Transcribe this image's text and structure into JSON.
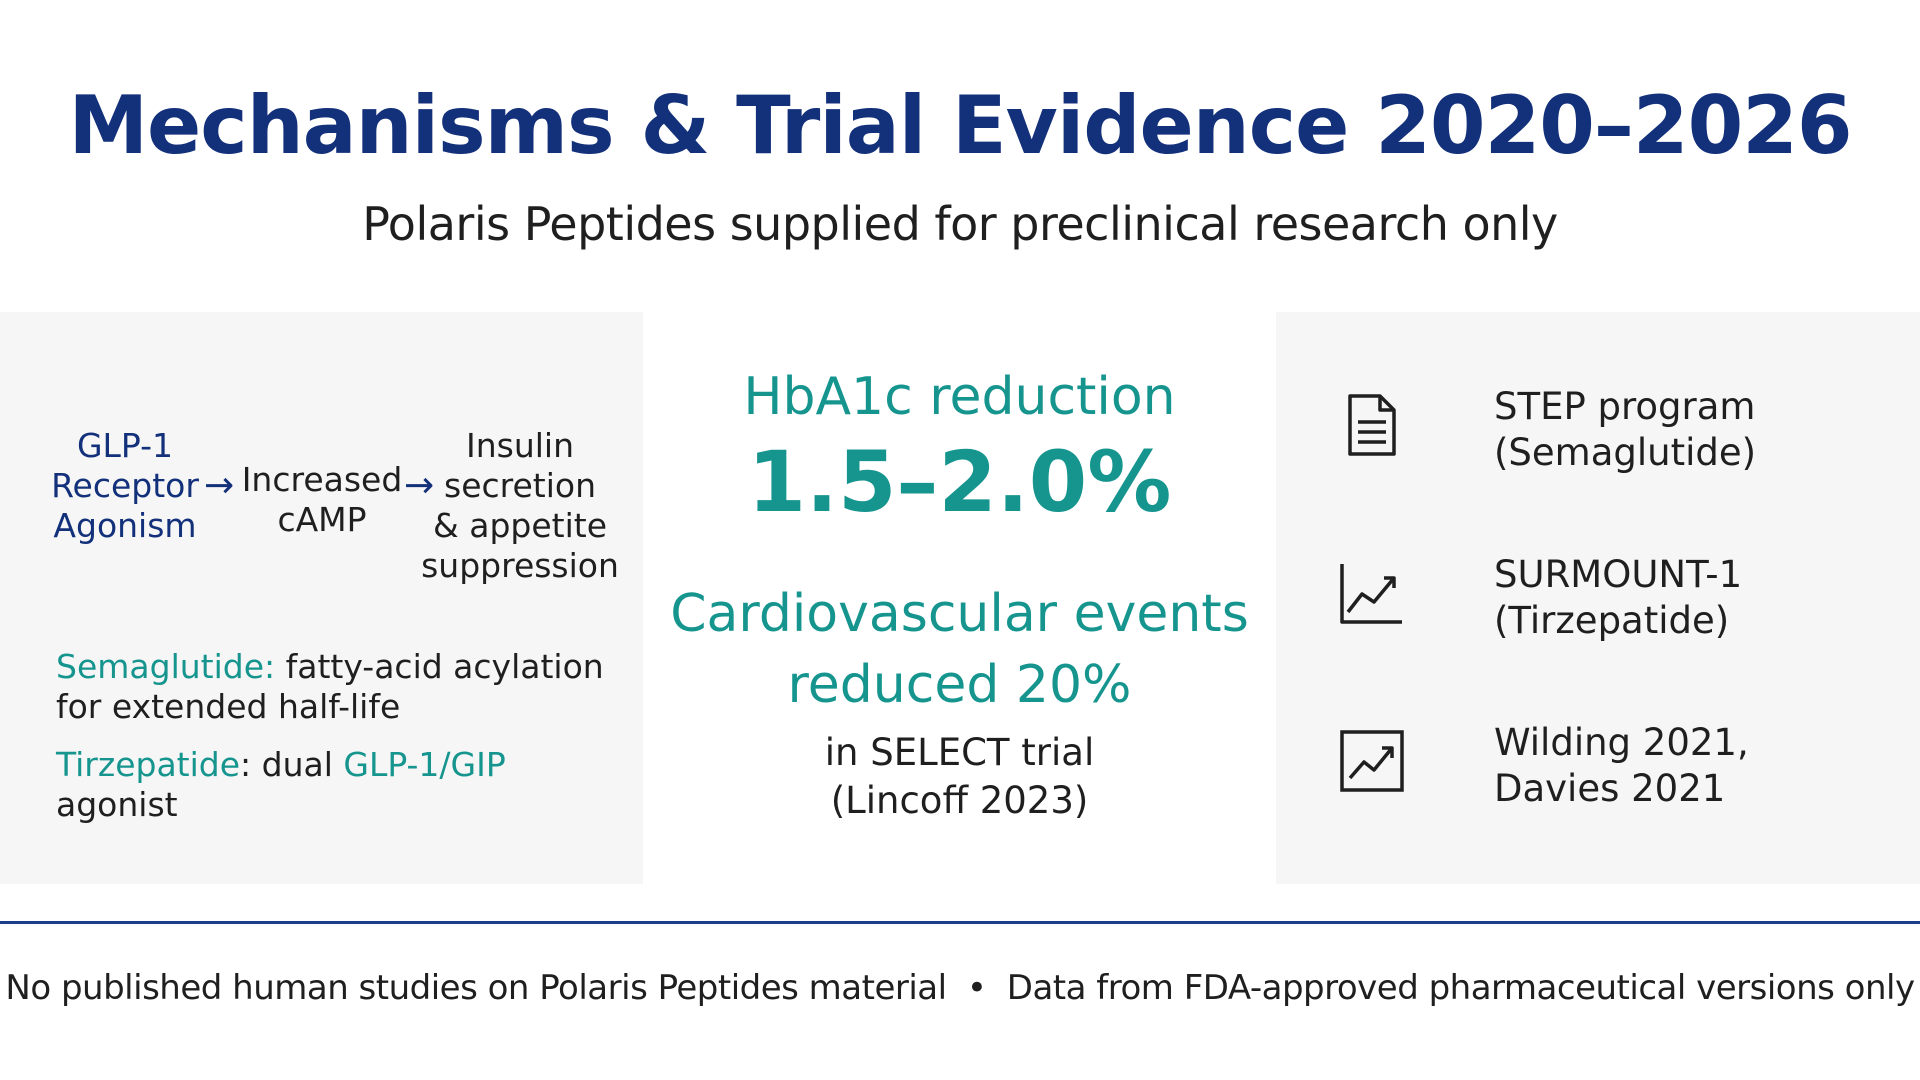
{
  "header": {
    "title": "Mechanisms & Trial Evidence 2020–2026",
    "subtitle": "Polaris Peptides supplied for preclinical research only"
  },
  "mechanism": {
    "flow": [
      {
        "lines": [
          "GLP-1",
          "Receptor",
          "Agonism"
        ]
      },
      {
        "lines": [
          "Increased",
          "cAMP"
        ]
      },
      {
        "lines": [
          "Insulin",
          "secretion",
          "& appetite",
          "suppression"
        ]
      }
    ],
    "arrow_glyph": "→",
    "notes": [
      {
        "drug": "Semaglutide",
        "sep": ":",
        "text_line1": " fatty-acid acylation",
        "text_line2": "for extended half-life"
      },
      {
        "drug": "Tirzepatide",
        "sep": ":",
        "text_pre": " dual ",
        "highlight": "GLP-1/GIP",
        "text_line2": "agonist"
      }
    ]
  },
  "stats": {
    "hba1c_label": "HbA1c reduction",
    "hba1c_value": "1.5–2.0%",
    "cv_line1": "Cardiovascular events",
    "cv_line2": "reduced 20%",
    "cv_source_line1": "in SELECT trial",
    "cv_source_line2": "(Lincoff 2023)"
  },
  "references": [
    {
      "icon": "document-icon",
      "line1": "STEP program",
      "line2": "(Semaglutide)"
    },
    {
      "icon": "trend-chart-icon",
      "line1": "SURMOUNT-1",
      "line2": "(Tirzepatide)"
    },
    {
      "icon": "trend-chart-box-icon",
      "line1": "Wilding 2021,",
      "line2": "Davies 2021"
    }
  ],
  "footer": {
    "left": "No published human studies on Polaris Peptides material",
    "bullet": "•",
    "right": "Data from FDA-approved pharmaceutical versions only"
  },
  "colors": {
    "title_navy": "#13307a",
    "accent_teal": "#16958f",
    "divider": "#1d3f8a",
    "panel_bg": "#f6f6f6"
  }
}
